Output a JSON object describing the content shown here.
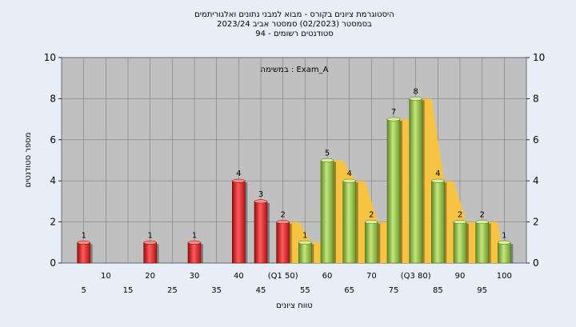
{
  "chart_data": {
    "type": "bar",
    "title_lines": [
      "היסטוגרמת ציונים בקורס - מבוא למבני נתונים ואלגוריתמים",
      "בסמסטר  (02/2023)  סמסטר אביב 2023/24",
      "94 - סטודנטים רשומים"
    ],
    "annotation": "במשימה : Exam_A",
    "xlabel": "טווח ציונים",
    "ylabel": "מספר סטודנטים",
    "ylim": [
      0,
      10
    ],
    "yticks": [
      0,
      2,
      4,
      6,
      8,
      10
    ],
    "categories": [
      "5",
      "10",
      "15",
      "20",
      "25",
      "30",
      "35",
      "40",
      "45",
      "(Q1 50)",
      "55",
      "60",
      "65",
      "70",
      "75",
      "(Q3 80)",
      "85",
      "90",
      "95",
      "100"
    ],
    "values": [
      1,
      0,
      0,
      1,
      0,
      1,
      0,
      4,
      3,
      2,
      1,
      5,
      4,
      2,
      7,
      8,
      4,
      2,
      2,
      1
    ],
    "bar_colors": {
      "below": "#e02020",
      "above": "#8cbf3f"
    },
    "cumulative_area_color": "#f9c33c",
    "grid": true,
    "plot_background": "#c0c0c0"
  }
}
